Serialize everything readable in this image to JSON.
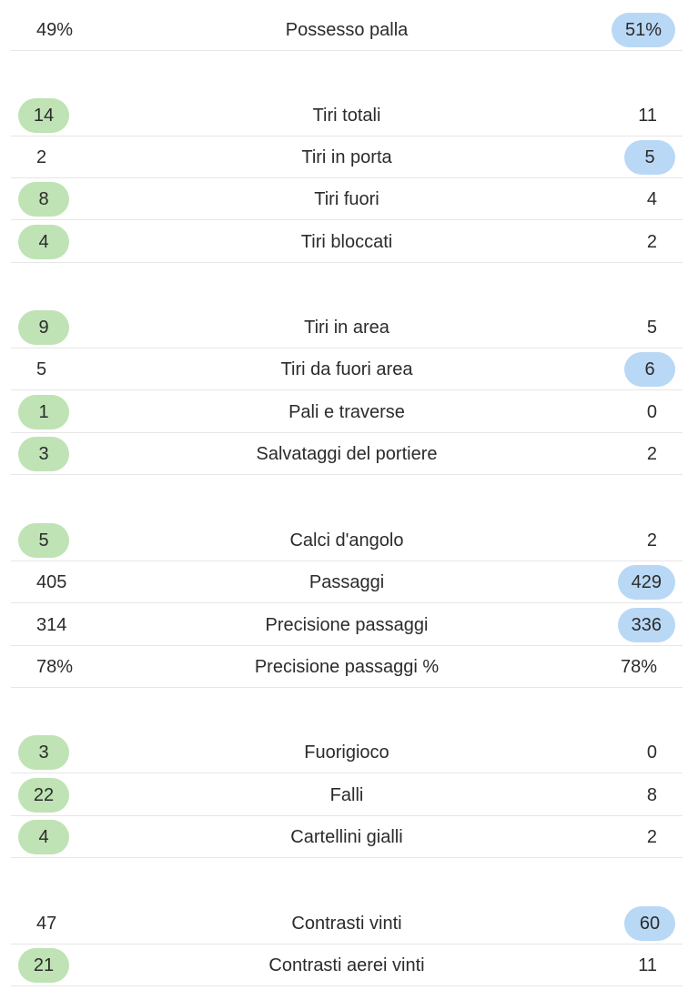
{
  "rows": [
    {
      "label": "Possesso palla",
      "home": "49%",
      "away": "51%",
      "highlight": "away"
    },
    {
      "label": "Tiri totali",
      "home": "14",
      "away": "11",
      "highlight": "home"
    },
    {
      "label": "Tiri in porta",
      "home": "2",
      "away": "5",
      "highlight": "away"
    },
    {
      "label": "Tiri fuori",
      "home": "8",
      "away": "4",
      "highlight": "home"
    },
    {
      "label": "Tiri bloccati",
      "home": "4",
      "away": "2",
      "highlight": "home"
    },
    {
      "label": "Tiri in area",
      "home": "9",
      "away": "5",
      "highlight": "home"
    },
    {
      "label": "Tiri da fuori area",
      "home": "5",
      "away": "6",
      "highlight": "away"
    },
    {
      "label": "Pali e traverse",
      "home": "1",
      "away": "0",
      "highlight": "home"
    },
    {
      "label": "Salvataggi del portiere",
      "home": "3",
      "away": "2",
      "highlight": "home"
    },
    {
      "label": "Calci d'angolo",
      "home": "5",
      "away": "2",
      "highlight": "home"
    },
    {
      "label": "Passaggi",
      "home": "405",
      "away": "429",
      "highlight": "away"
    },
    {
      "label": "Precisione passaggi",
      "home": "314",
      "away": "336",
      "highlight": "away"
    },
    {
      "label": "Precisione passaggi %",
      "home": "78%",
      "away": "78%",
      "highlight": "none"
    },
    {
      "label": "Fuorigioco",
      "home": "3",
      "away": "0",
      "highlight": "home"
    },
    {
      "label": "Falli",
      "home": "22",
      "away": "8",
      "highlight": "home"
    },
    {
      "label": "Cartellini gialli",
      "home": "4",
      "away": "2",
      "highlight": "home"
    },
    {
      "label": "Contrasti vinti",
      "home": "47",
      "away": "60",
      "highlight": "away"
    },
    {
      "label": "Contrasti aerei vinti",
      "home": "21",
      "away": "11",
      "highlight": "home"
    }
  ],
  "colors": {
    "home_highlight": "#bfe3b4",
    "away_highlight": "#b9d8f5",
    "divider": "#e6e6e6",
    "text": "#2b2b2b"
  }
}
